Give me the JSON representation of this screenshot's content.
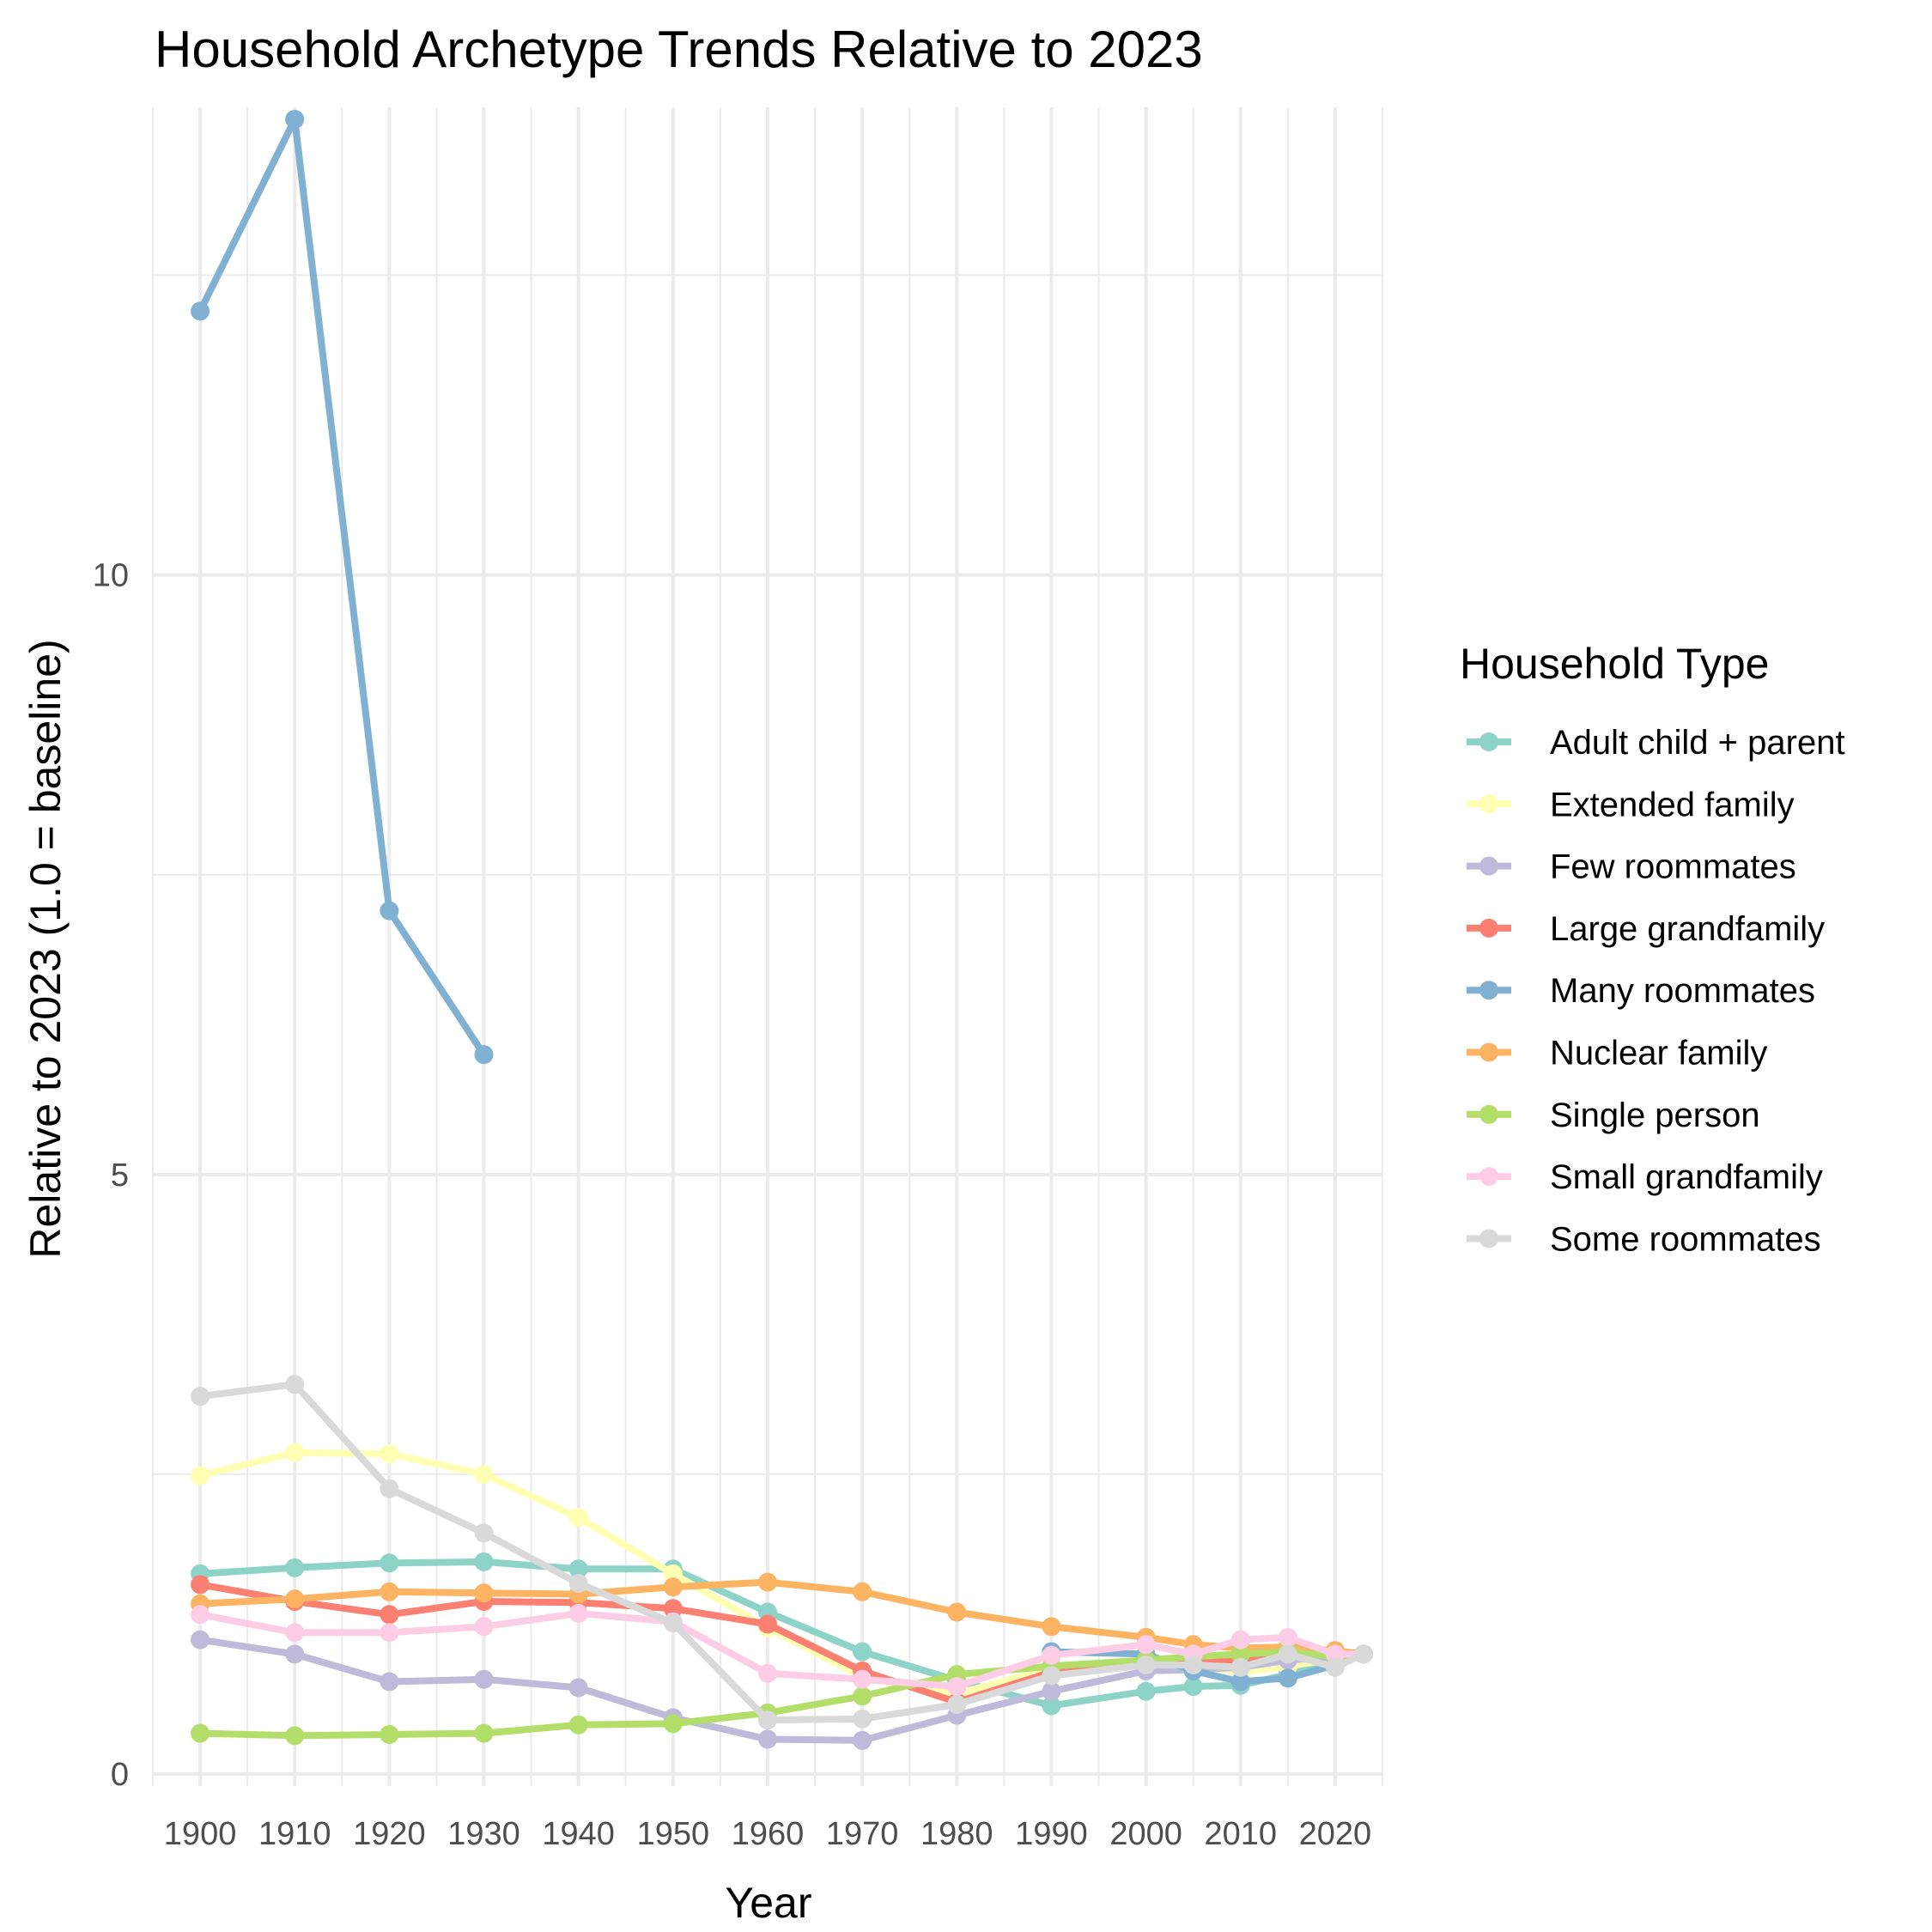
{
  "chart_data": {
    "type": "line",
    "title": "Household Archetype Trends Relative to 2023",
    "xlabel": "Year",
    "ylabel": "Relative to 2023 (1.0 = baseline)",
    "x_ticks": [
      "1900",
      "1910",
      "1920",
      "1930",
      "1940",
      "1950",
      "1960",
      "1970",
      "1980",
      "1990",
      "2000",
      "2010",
      "2020"
    ],
    "y_ticks": [
      "0",
      "5",
      "10"
    ],
    "ylim": [
      -0.1,
      13.9
    ],
    "xlim": [
      1895,
      2025
    ],
    "grid": true,
    "legend_title": "Household Type",
    "legend_position": "right",
    "series": [
      {
        "name": "Adult child + parent",
        "color": "#8DD3C7",
        "x": [
          1900,
          1910,
          1920,
          1930,
          1940,
          1950,
          1960,
          1970,
          1980,
          1990,
          2000,
          2005,
          2010,
          2015,
          2020,
          2023
        ],
        "y": [
          1.67,
          1.72,
          1.76,
          1.77,
          1.71,
          1.71,
          1.35,
          1.02,
          0.78,
          0.57,
          0.69,
          0.73,
          0.74,
          0.83,
          0.93,
          1.0
        ]
      },
      {
        "name": "Extended family",
        "color": "#FFFFB3",
        "x": [
          1900,
          1910,
          1920,
          1930,
          1940,
          1950,
          1960,
          1970,
          1980,
          1990,
          2000,
          2005,
          2010,
          2015,
          2020,
          2023
        ],
        "y": [
          2.49,
          2.68,
          2.67,
          2.5,
          2.14,
          1.67,
          1.22,
          0.81,
          0.67,
          0.88,
          0.92,
          0.9,
          0.85,
          0.9,
          0.96,
          1.0
        ]
      },
      {
        "name": "Few roommates",
        "color": "#BEBADA",
        "x": [
          1900,
          1910,
          1920,
          1930,
          1940,
          1950,
          1960,
          1970,
          1980,
          1990,
          2000,
          2005,
          2010,
          2015,
          2020,
          2023
        ],
        "y": [
          1.12,
          1.0,
          0.77,
          0.79,
          0.72,
          0.47,
          0.29,
          0.28,
          0.49,
          0.69,
          0.86,
          0.87,
          0.89,
          0.95,
          0.98,
          1.0
        ]
      },
      {
        "name": "Large grandfamily",
        "color": "#FB8072",
        "x": [
          1900,
          1910,
          1920,
          1930,
          1940,
          1950,
          1960,
          1970,
          1980,
          1990,
          2000,
          2005,
          2010,
          2015,
          2020,
          2023
        ],
        "y": [
          1.58,
          1.44,
          1.33,
          1.44,
          1.43,
          1.38,
          1.25,
          0.86,
          0.6,
          0.85,
          0.94,
          0.96,
          0.95,
          1.01,
          0.99,
          1.0
        ]
      },
      {
        "name": "Many roommates",
        "color": "#80B1D3",
        "x": [
          1900,
          1910,
          1920,
          1930
        ],
        "y": [
          12.2,
          13.8,
          7.2,
          6.0
        ]
      },
      {
        "name": "Many roommates",
        "color": "#80B1D3",
        "x": [
          1990,
          2000,
          2005,
          2010,
          2015,
          2020,
          2023
        ],
        "y": [
          1.02,
          1.0,
          0.86,
          0.77,
          0.8,
          0.91,
          1.0
        ]
      },
      {
        "name": "Nuclear family",
        "color": "#FDB462",
        "x": [
          1900,
          1910,
          1920,
          1930,
          1940,
          1950,
          1960,
          1970,
          1980,
          1990,
          2000,
          2005,
          2010,
          2015,
          2020,
          2023
        ],
        "y": [
          1.42,
          1.46,
          1.52,
          1.51,
          1.5,
          1.56,
          1.6,
          1.52,
          1.35,
          1.23,
          1.14,
          1.08,
          1.05,
          1.06,
          1.03,
          1.0
        ]
      },
      {
        "name": "Single person",
        "color": "#B3DE69",
        "x": [
          1900,
          1910,
          1920,
          1930,
          1940,
          1950,
          1960,
          1970,
          1980,
          1990,
          2000,
          2005,
          2010,
          2015,
          2020,
          2023
        ],
        "y": [
          0.34,
          0.32,
          0.33,
          0.34,
          0.41,
          0.42,
          0.51,
          0.65,
          0.83,
          0.9,
          0.95,
          0.98,
          1.0,
          1.02,
          0.98,
          1.0
        ]
      },
      {
        "name": "Small grandfamily",
        "color": "#FCCDE5",
        "x": [
          1900,
          1910,
          1920,
          1930,
          1940,
          1950,
          1960,
          1970,
          1980,
          1990,
          2000,
          2005,
          2010,
          2015,
          2020,
          2023
        ],
        "y": [
          1.33,
          1.18,
          1.18,
          1.23,
          1.34,
          1.27,
          0.84,
          0.79,
          0.73,
          0.99,
          1.08,
          1.0,
          1.12,
          1.14,
          1.0,
          1.0
        ]
      },
      {
        "name": "Some roommates",
        "color": "#D9D9D9",
        "x": [
          1900,
          1910,
          1920,
          1930,
          1940,
          1950,
          1960,
          1970,
          1980,
          1990,
          2000,
          2005,
          2010,
          2015,
          2020,
          2023
        ],
        "y": [
          3.15,
          3.25,
          2.38,
          2.01,
          1.59,
          1.26,
          0.45,
          0.46,
          0.58,
          0.82,
          0.91,
          0.91,
          0.89,
          1.0,
          0.89,
          1.0
        ]
      }
    ]
  }
}
